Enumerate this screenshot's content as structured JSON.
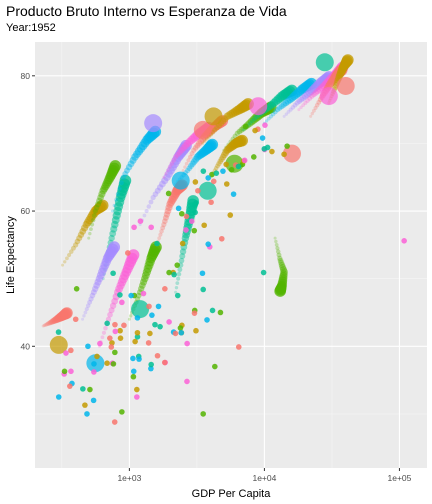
{
  "chart_data": {
    "type": "scatter",
    "title": "Producto Bruto Interno vs Esperanza de Vida",
    "subtitle": "Year:1952",
    "xlabel": "GDP Per Capita",
    "ylabel": "Life Expectancy",
    "x_scale": "log10",
    "xlim": [
      200,
      160000
    ],
    "ylim": [
      22,
      85
    ],
    "x_ticks": [
      1000,
      10000,
      100000
    ],
    "x_tick_labels": [
      "1e+03",
      "1e+04",
      "1e+05"
    ],
    "y_ticks": [
      40,
      60,
      80
    ],
    "y_tick_labels": [
      "40",
      "60",
      "80"
    ],
    "grid": true,
    "panel_color": "#ebebeb",
    "palette": [
      "#f8766d",
      "#c49a00",
      "#53b400",
      "#00c094",
      "#00b6eb",
      "#a58aff",
      "#fb61d7"
    ],
    "points": [
      [
        778.9,
        28.8,
        0
      ],
      [
        1601.1,
        55.2,
        3
      ],
      [
        2449.0,
        43.1,
        1
      ],
      [
        3520.6,
        30.0,
        2
      ],
      [
        5911.3,
        62.5,
        4
      ],
      [
        10039.6,
        69.1,
        6
      ],
      [
        6137.1,
        66.8,
        0
      ],
      [
        9867.1,
        50.9,
        3
      ],
      [
        684.2,
        37.5,
        1
      ],
      [
        8343.1,
        68.0,
        2
      ],
      [
        1062.8,
        38.2,
        4
      ],
      [
        2677.3,
        40.4,
        6
      ],
      [
        973.5,
        53.8,
        0
      ],
      [
        851.2,
        47.6,
        3
      ],
      [
        2108.9,
        50.9,
        1
      ],
      [
        2444.3,
        59.6,
        2
      ],
      [
        543.3,
        32.0,
        4
      ],
      [
        339.3,
        39.0,
        6
      ],
      [
        368.5,
        39.4,
        0
      ],
      [
        1172.7,
        38.5,
        3
      ],
      [
        11367.2,
        68.8,
        1
      ],
      [
        1071.3,
        35.5,
        2
      ],
      [
        1178.7,
        38.1,
        4
      ],
      [
        3939.0,
        54.7,
        6
      ],
      [
        400.4,
        44.0,
        0
      ],
      [
        2144.1,
        50.6,
        3
      ],
      [
        1102.9,
        40.7,
        1
      ],
      [
        780.5,
        39.1,
        2
      ],
      [
        2125.6,
        42.1,
        4
      ],
      [
        2627.0,
        57.2,
        6
      ],
      [
        1388.6,
        40.5,
        0
      ],
      [
        3119.2,
        61.2,
        3
      ],
      [
        5586.5,
        59.4,
        1
      ],
      [
        6876.1,
        66.9,
        2
      ],
      [
        9692.4,
        70.8,
        4
      ],
      [
        2669.5,
        34.8,
        6
      ],
      [
        1397.7,
        45.9,
        0
      ],
      [
        3522.1,
        48.4,
        3
      ],
      [
        1418.8,
        41.9,
        1
      ],
      [
        3048.3,
        45.3,
        2
      ],
      [
        375.6,
        34.5,
        4
      ],
      [
        328.9,
        35.9,
        6
      ],
      [
        362.1,
        34.1,
        0
      ],
      [
        6424.5,
        66.6,
        3
      ],
      [
        7029.8,
        67.4,
        1
      ],
      [
        4293.5,
        37.0,
        2
      ],
      [
        485.2,
        30.0,
        4
      ],
      [
        7144.1,
        67.5,
        6
      ],
      [
        911.3,
        43.1,
        0
      ],
      [
        3530.7,
        65.9,
        3
      ],
      [
        2428.2,
        42.0,
        1
      ],
      [
        510.2,
        33.6,
        2
      ],
      [
        299.9,
        32.5,
        4
      ],
      [
        1840.4,
        37.6,
        6
      ],
      [
        2194.9,
        41.9,
        0
      ],
      [
        3054.4,
        60.9,
        3
      ],
      [
        5263.7,
        64.0,
        1
      ],
      [
        7267.7,
        72.5,
        2
      ],
      [
        546.6,
        37.4,
        4
      ],
      [
        749.7,
        37.5,
        6
      ],
      [
        3035.3,
        44.9,
        0
      ],
      [
        4129.8,
        45.3,
        3
      ],
      [
        5210.3,
        66.9,
        1
      ],
      [
        4086.5,
        65.4,
        2
      ],
      [
        4931.4,
        65.9,
        4
      ],
      [
        2898.5,
        58.5,
        6
      ],
      [
        3216.9,
        63.0,
        0
      ],
      [
        1546.9,
        43.2,
        3
      ],
      [
        853.5,
        42.3,
        1
      ],
      [
        1088.3,
        47.5,
        2
      ],
      [
        1030.6,
        47.5,
        4
      ],
      [
        108382.4,
        55.6,
        6
      ],
      [
        4834.8,
        55.9,
        0
      ],
      [
        298.8,
        42.1,
        3
      ],
      [
        575.6,
        38.5,
        1
      ],
      [
        2387.5,
        42.7,
        2
      ],
      [
        1443.0,
        36.7,
        4
      ],
      [
        369.2,
        36.3,
        6
      ],
      [
        1831.1,
        48.5,
        0
      ],
      [
        452.3,
        33.7,
        3
      ],
      [
        743.1,
        40.5,
        1
      ],
      [
        1967.9,
        50.9,
        2
      ],
      [
        3478.1,
        50.8,
        4
      ],
      [
        786.6,
        42.2,
        6
      ],
      [
        2647.6,
        59.2,
        0
      ],
      [
        1688.2,
        42.9,
        3
      ],
      [
        468.5,
        31.3,
        1
      ],
      [
        331.0,
        36.3,
        2
      ],
      [
        2423.8,
        42.0,
        4
      ],
      [
        545.9,
        36.2,
        6
      ],
      [
        8941.6,
        72.1,
        0
      ],
      [
        10556.6,
        69.4,
        3
      ],
      [
        3112.4,
        42.3,
        1
      ],
      [
        761.9,
        37.4,
        2
      ],
      [
        1077.3,
        36.3,
        4
      ],
      [
        10095.4,
        72.7,
        6
      ],
      [
        1828.2,
        37.6,
        0
      ],
      [
        684.6,
        43.4,
        3
      ],
      [
        2480.4,
        55.2,
        1
      ],
      [
        1952.3,
        62.6,
        2
      ],
      [
        3758.5,
        43.9,
        4
      ],
      [
        1272.9,
        47.8,
        6
      ],
      [
        4029.3,
        61.3,
        0
      ],
      [
        3068.3,
        59.8,
        3
      ],
      [
        3081.0,
        64.3,
        1
      ],
      [
        2261.2,
        52.0,
        2
      ],
      [
        493.3,
        40.0,
        4
      ],
      [
        879.8,
        46.5,
        6
      ],
      [
        6459.6,
        39.9,
        0
      ],
      [
        1450.4,
        37.3,
        3
      ],
      [
        3581.5,
        57.9,
        1
      ],
      [
        879.8,
        30.3,
        2
      ],
      [
        2315.1,
        60.4,
        4
      ],
      [
        1135.7,
        32.5,
        6
      ],
      [
        4215.0,
        64.4,
        0
      ],
      [
        4405.9,
        65.6,
        3
      ],
      [
        1135.7,
        33.6,
        1
      ],
      [
        4725.3,
        45.0,
        2
      ],
      [
        3834.0,
        64.9,
        4
      ],
      [
        1083.5,
        57.6,
        6
      ],
      [
        1615.9,
        38.6,
        0
      ],
      [
        1148.4,
        41.4,
        3
      ],
      [
        8527.8,
        71.9,
        1
      ],
      [
        14734.2,
        69.6,
        2
      ],
      [
        1643.5,
        45.9,
        4
      ],
      [
        1206.9,
        58.5,
        6
      ],
      [
        716.7,
        41.2,
        0
      ],
      [
        757.8,
        50.8,
        3
      ],
      [
        859.8,
        41.2,
        1
      ],
      [
        3023.3,
        57.1,
        2
      ],
      [
        1468.5,
        44.6,
        4
      ],
      [
        1969.1,
        43.6,
        6
      ],
      [
        734.8,
        39.9,
        0
      ],
      [
        9979.5,
        69.2,
        3
      ],
      [
        13990.5,
        68.4,
        1
      ],
      [
        5716.8,
        66.1,
        2
      ],
      [
        3834.0,
        55.1,
        4
      ],
      [
        605.1,
        40.4,
        6
      ],
      [
        781.7,
        43.2,
        0
      ],
      [
        2281.8,
        47.5,
        3
      ],
      [
        1147.4,
        42.0,
        1
      ],
      [
        406.9,
        48.5,
        2
      ],
      [
        1147.4,
        44.2,
        4
      ],
      [
        1450.4,
        57.6,
        6
      ]
    ],
    "bubble_series": [
      [
        [
          230,
          43.0
        ],
        [
          260,
          43.5
        ],
        [
          290,
          44.0
        ],
        [
          320,
          44.5
        ],
        [
          350,
          45.0
        ]
      ],
      [
        [
          320,
          52.0
        ],
        [
          400,
          55.0
        ],
        [
          480,
          58.0
        ],
        [
          560,
          60.0
        ],
        [
          650,
          61.0
        ]
      ],
      [
        [
          500,
          56.0
        ],
        [
          560,
          60.0
        ],
        [
          640,
          63.0
        ],
        [
          720,
          65.0
        ],
        [
          800,
          67.0
        ]
      ],
      [
        [
          640,
          50.0
        ],
        [
          700,
          54.0
        ],
        [
          780,
          58.0
        ],
        [
          860,
          62.0
        ],
        [
          950,
          65.0
        ]
      ],
      [
        [
          750,
          60.0
        ],
        [
          900,
          65.0
        ],
        [
          1100,
          68.0
        ],
        [
          1350,
          70.5
        ],
        [
          1600,
          72.0
        ]
      ],
      [
        [
          1200,
          58.0
        ],
        [
          1500,
          62.0
        ],
        [
          1900,
          65.0
        ],
        [
          2300,
          68.0
        ],
        [
          2700,
          70.0
        ]
      ],
      [
        [
          1800,
          65.0
        ],
        [
          2200,
          68.0
        ],
        [
          2700,
          70.0
        ],
        [
          3300,
          71.5
        ],
        [
          4000,
          72.5
        ]
      ],
      [
        [
          2500,
          66.0
        ],
        [
          3000,
          69.0
        ],
        [
          3600,
          71.0
        ],
        [
          4300,
          72.5
        ],
        [
          5000,
          73.5
        ]
      ],
      [
        [
          3500,
          70.0
        ],
        [
          4300,
          72.0
        ],
        [
          5300,
          74.0
        ],
        [
          6500,
          75.0
        ],
        [
          7800,
          76.0
        ]
      ],
      [
        [
          5000,
          69.0
        ],
        [
          6300,
          71.5
        ],
        [
          7800,
          73.0
        ],
        [
          9500,
          74.5
        ],
        [
          11500,
          75.5
        ]
      ],
      [
        [
          7000,
          72.0
        ],
        [
          8800,
          74.0
        ],
        [
          11000,
          75.5
        ],
        [
          13500,
          77.0
        ],
        [
          16500,
          78.0
        ]
      ],
      [
        [
          10000,
          73.0
        ],
        [
          12500,
          75.0
        ],
        [
          15500,
          76.5
        ],
        [
          19000,
          78.0
        ],
        [
          23000,
          79.0
        ]
      ],
      [
        [
          14000,
          74.0
        ],
        [
          17500,
          76.0
        ],
        [
          21500,
          77.5
        ],
        [
          26000,
          79.0
        ],
        [
          31000,
          80.0
        ]
      ],
      [
        [
          18000,
          75.0
        ],
        [
          22500,
          77.0
        ],
        [
          27500,
          78.5
        ],
        [
          33000,
          80.0
        ],
        [
          39000,
          81.5
        ]
      ],
      [
        [
          22000,
          74.0
        ],
        [
          26000,
          76.5
        ],
        [
          30000,
          78.5
        ],
        [
          34000,
          80.0
        ],
        [
          38000,
          81.0
        ]
      ],
      [
        [
          30000,
          76.0
        ],
        [
          33000,
          78.0
        ],
        [
          36000,
          80.0
        ],
        [
          39000,
          81.5
        ],
        [
          42000,
          82.5
        ]
      ],
      [
        [
          1000,
          44.0
        ],
        [
          1150,
          47.0
        ],
        [
          1300,
          50.0
        ],
        [
          1450,
          53.0
        ],
        [
          1600,
          55.0
        ]
      ],
      [
        [
          2200,
          48.0
        ],
        [
          2400,
          52.0
        ],
        [
          2600,
          56.0
        ],
        [
          2800,
          59.0
        ],
        [
          3000,
          62.0
        ]
      ],
      [
        [
          2200,
          64.0
        ],
        [
          2700,
          66.0
        ],
        [
          3200,
          68.0
        ],
        [
          3700,
          69.0
        ],
        [
          4200,
          70.0
        ]
      ],
      [
        [
          450,
          44.0
        ],
        [
          520,
          47.0
        ],
        [
          600,
          50.0
        ],
        [
          690,
          53.0
        ],
        [
          790,
          55.0
        ]
      ],
      [
        [
          600,
          40.0
        ],
        [
          700,
          44.0
        ],
        [
          820,
          48.0
        ],
        [
          950,
          51.0
        ],
        [
          1100,
          54.0
        ]
      ],
      [
        [
          1600,
          55.0
        ],
        [
          1800,
          58.0
        ],
        [
          2000,
          61.0
        ],
        [
          2250,
          63.0
        ],
        [
          2500,
          64.0
        ]
      ],
      [
        [
          4000,
          65.0
        ],
        [
          4600,
          67.0
        ],
        [
          5300,
          69.0
        ],
        [
          6100,
          70.0
        ],
        [
          7000,
          70.5
        ]
      ],
      [
        [
          12000,
          56.0
        ],
        [
          13000,
          53.0
        ],
        [
          14000,
          51.0
        ],
        [
          13500,
          49.0
        ],
        [
          13000,
          48.0
        ]
      ]
    ],
    "big_bubbles": [
      [
        1200,
        45.5,
        3
      ],
      [
        300,
        40.2,
        1
      ],
      [
        560,
        37.5,
        4
      ],
      [
        3500,
        72.0,
        0
      ],
      [
        4200,
        74.0,
        1
      ],
      [
        2400,
        64.5,
        4
      ],
      [
        30000,
        77.0,
        6
      ],
      [
        40000,
        78.5,
        0
      ],
      [
        16000,
        68.5,
        0
      ],
      [
        28000,
        82.0,
        3
      ],
      [
        6000,
        67.0,
        2
      ],
      [
        3800,
        63.0,
        3
      ],
      [
        1500,
        73.0,
        5
      ],
      [
        9000,
        75.5,
        6
      ]
    ]
  }
}
